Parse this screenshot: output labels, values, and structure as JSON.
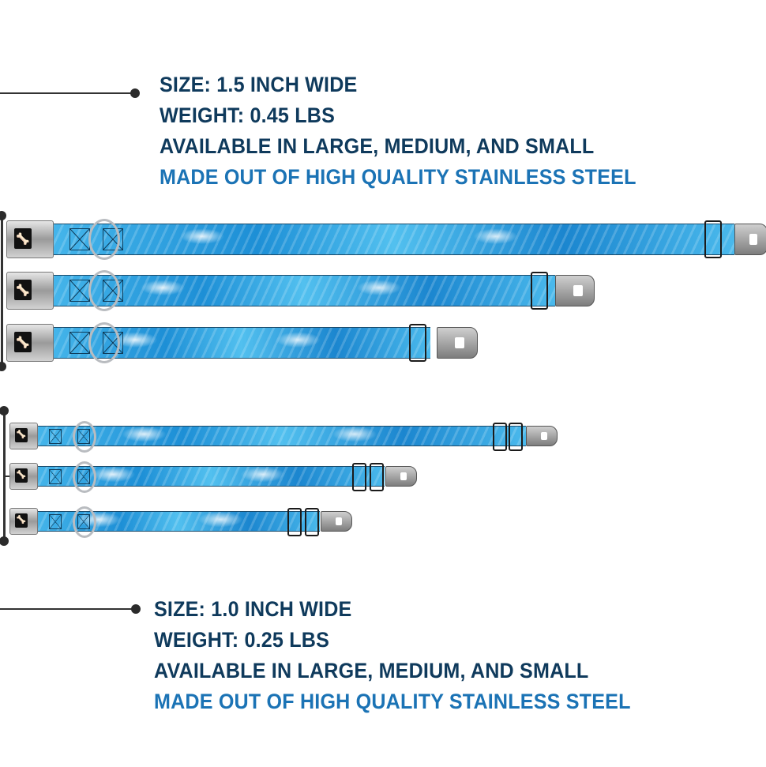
{
  "wide_collars": {
    "size": "SIZE: 1.5 INCH WIDE",
    "weight": "WEIGHT: 0.45 LBS",
    "availability": "AVAILABLE IN LARGE, MEDIUM, AND SMALL",
    "material": "MADE OUT OF HIGH QUALITY STAINLESS STEEL"
  },
  "narrow_collars": {
    "size": "SIZE: 1.0 INCH WIDE",
    "weight": "WEIGHT: 0.25 LBS",
    "availability": "AVAILABLE IN LARGE, MEDIUM, AND SMALL",
    "material": "MADE OUT OF HIGH QUALITY STAINLESS STEEL"
  },
  "colors": {
    "text": "#0f3a5c",
    "highlight": "#1b73b5",
    "collar_blue": "#2a9ee0"
  },
  "icons": [
    "bone-logo-icon",
    "d-ring-icon",
    "seatbelt-buckle-icon"
  ]
}
